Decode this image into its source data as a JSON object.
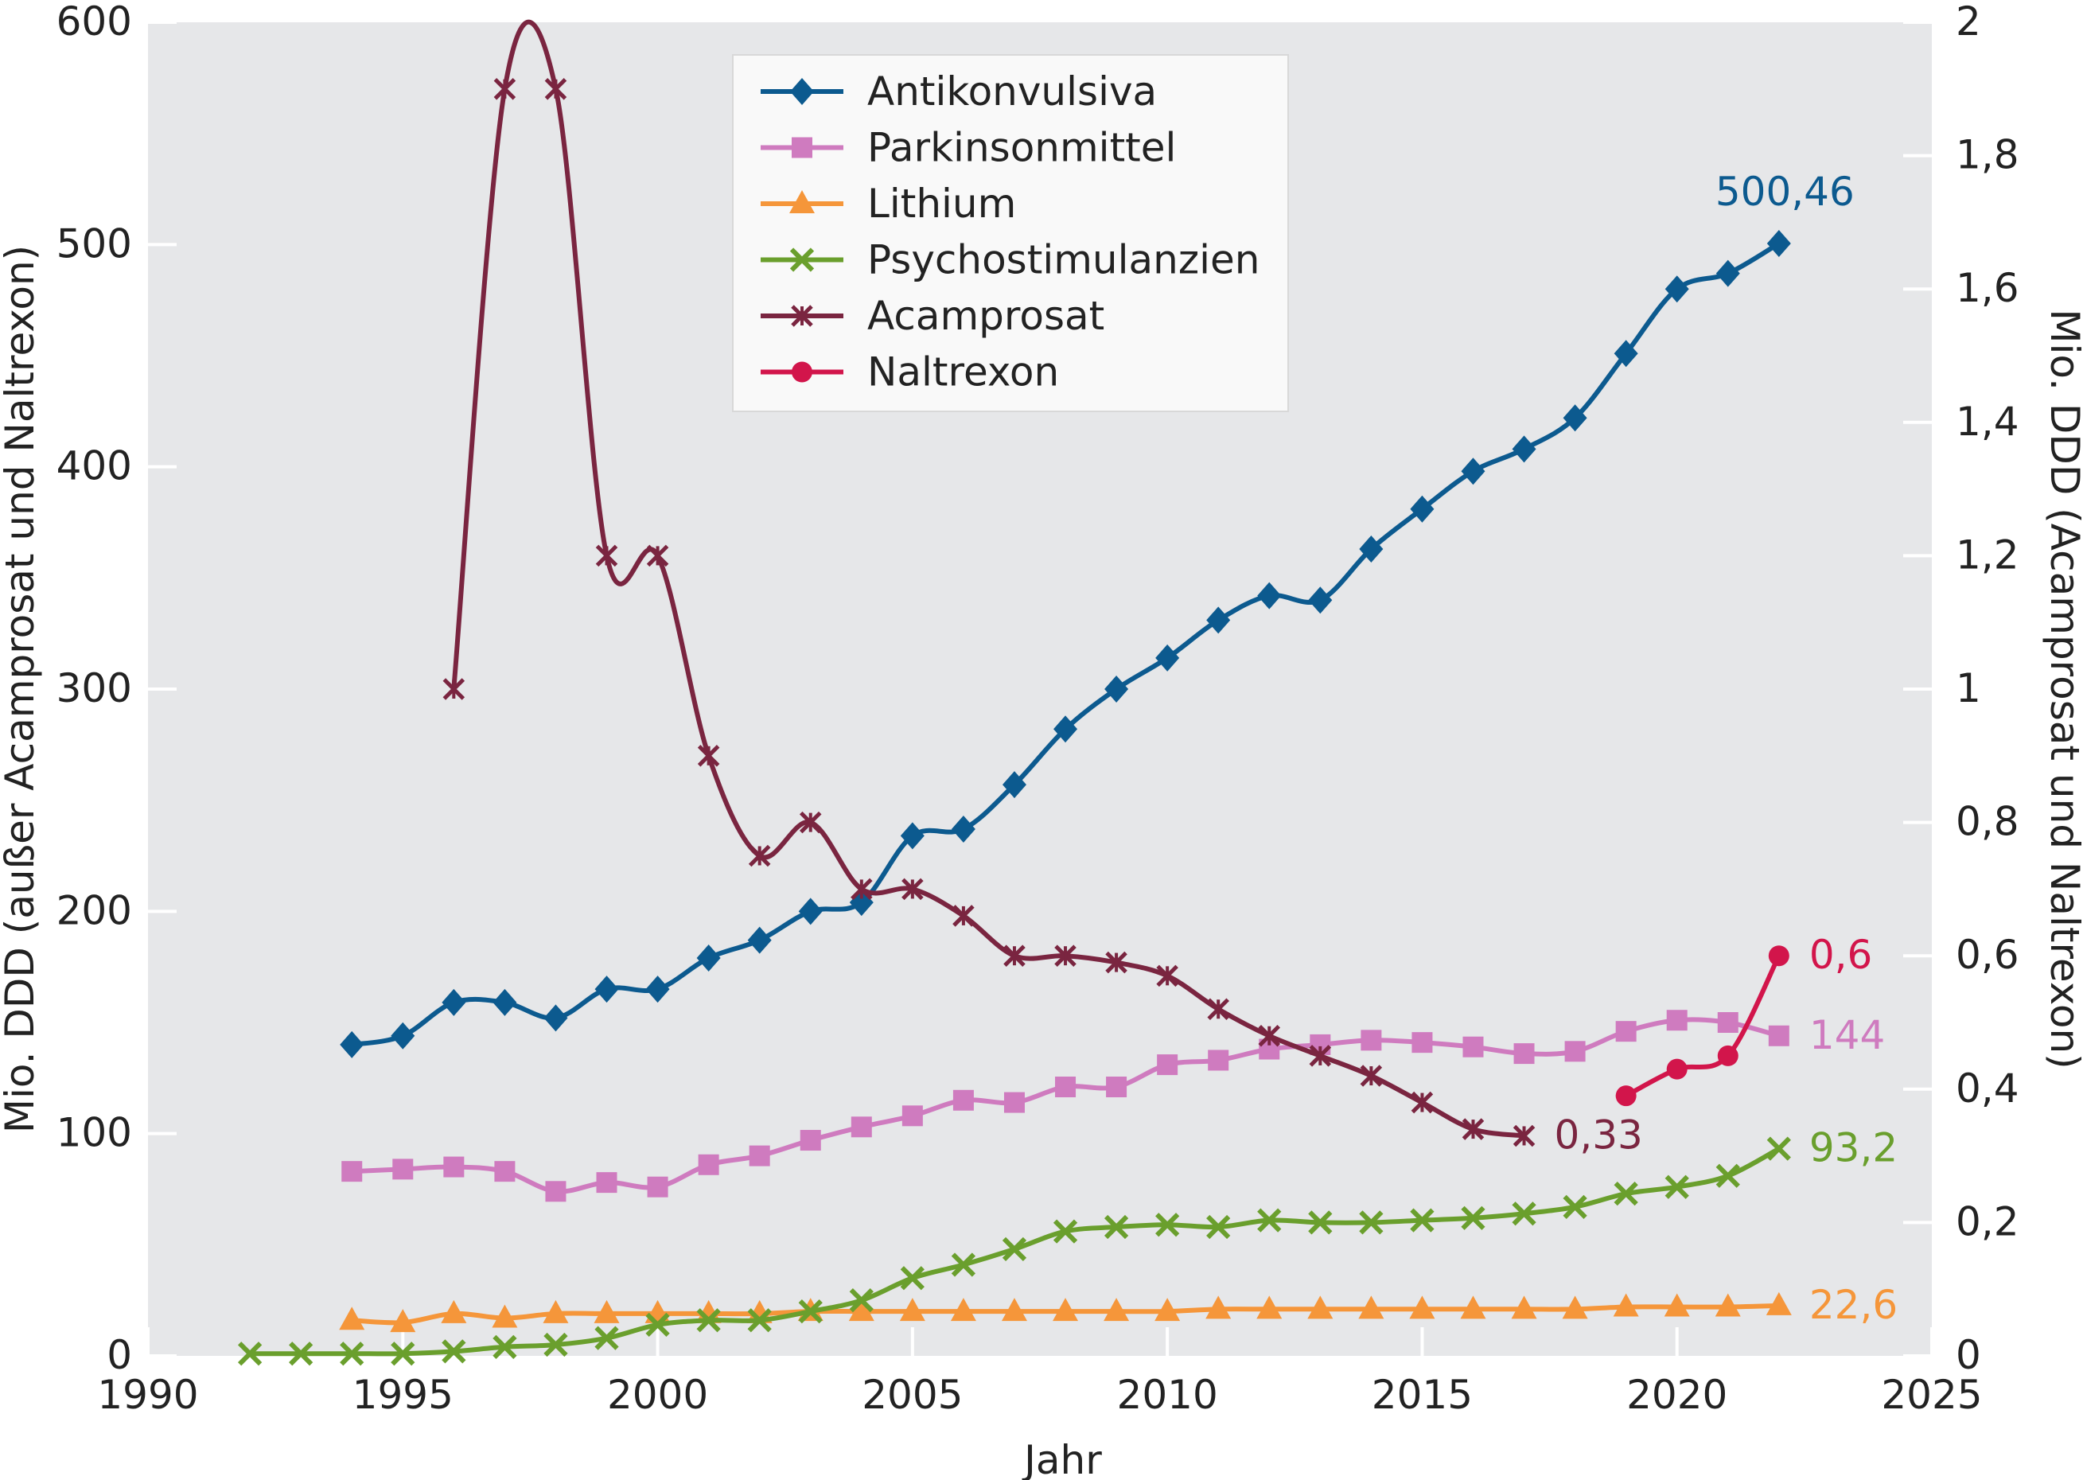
{
  "chart_data": {
    "type": "line",
    "xlabel": "Jahr",
    "ylabel_left": "Mio. DDD (außer Acamprosat und Naltrexon)",
    "ylabel_right": "Mio. DDD (Acamprosat und Naltrexon)",
    "xlim": [
      1990,
      2025
    ],
    "ylim_left": [
      0,
      600
    ],
    "ylim_right": [
      0,
      2
    ],
    "x_ticks": [
      "1990",
      "1995",
      "2000",
      "2005",
      "2010",
      "2015",
      "2020",
      "2025"
    ],
    "y_left_ticks": [
      "0",
      "100",
      "200",
      "300",
      "400",
      "500",
      "600"
    ],
    "y_right_ticks": [
      "0",
      "0,2",
      "0,4",
      "0,6",
      "0,8",
      "1",
      "1,2",
      "1,4",
      "1,6",
      "1,8",
      "2"
    ],
    "legend_position": "top-center",
    "background": "#e6e7e9",
    "series": [
      {
        "name": "Antikonvulsiva",
        "axis": "left",
        "marker": "diamond",
        "color": "#0c5a8f",
        "end_label": "500,46",
        "points": [
          [
            1994,
            140
          ],
          [
            1995,
            144
          ],
          [
            1996,
            159
          ],
          [
            1997,
            159
          ],
          [
            1998,
            152
          ],
          [
            1999,
            165
          ],
          [
            2000,
            165
          ],
          [
            2001,
            179
          ],
          [
            2002,
            187
          ],
          [
            2003,
            200
          ],
          [
            2004,
            204
          ],
          [
            2005,
            234
          ],
          [
            2006,
            237
          ],
          [
            2007,
            257
          ],
          [
            2008,
            282
          ],
          [
            2009,
            300
          ],
          [
            2010,
            314
          ],
          [
            2011,
            331
          ],
          [
            2012,
            342
          ],
          [
            2013,
            340
          ],
          [
            2014,
            363
          ],
          [
            2015,
            381
          ],
          [
            2016,
            398
          ],
          [
            2017,
            408
          ],
          [
            2018,
            422
          ],
          [
            2019,
            451
          ],
          [
            2020,
            480
          ],
          [
            2021,
            487
          ],
          [
            2022,
            500.46
          ]
        ]
      },
      {
        "name": "Parkinsonmittel",
        "axis": "left",
        "marker": "square",
        "color": "#cf7bbf",
        "end_label": "144",
        "points": [
          [
            1994,
            83
          ],
          [
            1995,
            84
          ],
          [
            1996,
            85
          ],
          [
            1997,
            83
          ],
          [
            1998,
            74
          ],
          [
            1999,
            78
          ],
          [
            2000,
            76
          ],
          [
            2001,
            86
          ],
          [
            2002,
            90
          ],
          [
            2003,
            97
          ],
          [
            2004,
            103
          ],
          [
            2005,
            108
          ],
          [
            2006,
            115
          ],
          [
            2007,
            114
          ],
          [
            2008,
            121
          ],
          [
            2009,
            121
          ],
          [
            2010,
            131
          ],
          [
            2011,
            133
          ],
          [
            2012,
            138
          ],
          [
            2013,
            140
          ],
          [
            2014,
            142
          ],
          [
            2015,
            141
          ],
          [
            2016,
            139
          ],
          [
            2017,
            136
          ],
          [
            2018,
            137
          ],
          [
            2019,
            146
          ],
          [
            2020,
            151
          ],
          [
            2021,
            150
          ],
          [
            2022,
            144
          ]
        ]
      },
      {
        "name": "Lithium",
        "axis": "left",
        "marker": "triangle",
        "color": "#f5963a",
        "end_label": "22,6",
        "points": [
          [
            1994,
            16
          ],
          [
            1995,
            15
          ],
          [
            1996,
            19
          ],
          [
            1997,
            17
          ],
          [
            1998,
            19
          ],
          [
            1999,
            19
          ],
          [
            2000,
            19
          ],
          [
            2001,
            19
          ],
          [
            2002,
            19
          ],
          [
            2003,
            20
          ],
          [
            2004,
            20
          ],
          [
            2005,
            20
          ],
          [
            2006,
            20
          ],
          [
            2007,
            20
          ],
          [
            2008,
            20
          ],
          [
            2009,
            20
          ],
          [
            2010,
            20
          ],
          [
            2011,
            21
          ],
          [
            2012,
            21
          ],
          [
            2013,
            21
          ],
          [
            2014,
            21
          ],
          [
            2015,
            21
          ],
          [
            2016,
            21
          ],
          [
            2017,
            21
          ],
          [
            2018,
            21
          ],
          [
            2019,
            22
          ],
          [
            2020,
            22
          ],
          [
            2021,
            22
          ],
          [
            2022,
            22.6
          ]
        ]
      },
      {
        "name": "Psychostimulanzien",
        "axis": "left",
        "marker": "x",
        "color": "#6a9f2d",
        "end_label": "93,2",
        "points": [
          [
            1992,
            1
          ],
          [
            1993,
            1
          ],
          [
            1994,
            1
          ],
          [
            1995,
            1
          ],
          [
            1996,
            2
          ],
          [
            1997,
            4
          ],
          [
            1998,
            5
          ],
          [
            1999,
            8
          ],
          [
            2000,
            14
          ],
          [
            2001,
            16
          ],
          [
            2002,
            16
          ],
          [
            2003,
            20
          ],
          [
            2004,
            25
          ],
          [
            2005,
            35
          ],
          [
            2006,
            41
          ],
          [
            2007,
            48
          ],
          [
            2008,
            56
          ],
          [
            2009,
            58
          ],
          [
            2010,
            59
          ],
          [
            2011,
            58
          ],
          [
            2012,
            61
          ],
          [
            2013,
            60
          ],
          [
            2014,
            60
          ],
          [
            2015,
            61
          ],
          [
            2016,
            62
          ],
          [
            2017,
            64
          ],
          [
            2018,
            67
          ],
          [
            2019,
            73
          ],
          [
            2020,
            76
          ],
          [
            2021,
            81
          ],
          [
            2022,
            93.2
          ]
        ]
      },
      {
        "name": "Acamprosat",
        "axis": "right",
        "marker": "asterisk",
        "color": "#7a2540",
        "end_label": "0,33",
        "points": [
          [
            1996,
            1.0
          ],
          [
            1997,
            1.9
          ],
          [
            1998,
            1.9
          ],
          [
            1999,
            1.2
          ],
          [
            2000,
            1.2
          ],
          [
            2001,
            0.9
          ],
          [
            2002,
            0.75
          ],
          [
            2003,
            0.8
          ],
          [
            2004,
            0.7
          ],
          [
            2005,
            0.7
          ],
          [
            2006,
            0.66
          ],
          [
            2007,
            0.6
          ],
          [
            2008,
            0.6
          ],
          [
            2009,
            0.59
          ],
          [
            2010,
            0.57
          ],
          [
            2011,
            0.52
          ],
          [
            2012,
            0.48
          ],
          [
            2013,
            0.45
          ],
          [
            2014,
            0.42
          ],
          [
            2015,
            0.38
          ],
          [
            2016,
            0.34
          ],
          [
            2017,
            0.33
          ]
        ]
      },
      {
        "name": "Naltrexon",
        "axis": "right",
        "marker": "circle",
        "color": "#d2154b",
        "end_label": "0,6",
        "points": [
          [
            2019,
            0.39
          ],
          [
            2020,
            0.43
          ],
          [
            2021,
            0.45
          ],
          [
            2022,
            0.6
          ]
        ]
      }
    ]
  }
}
